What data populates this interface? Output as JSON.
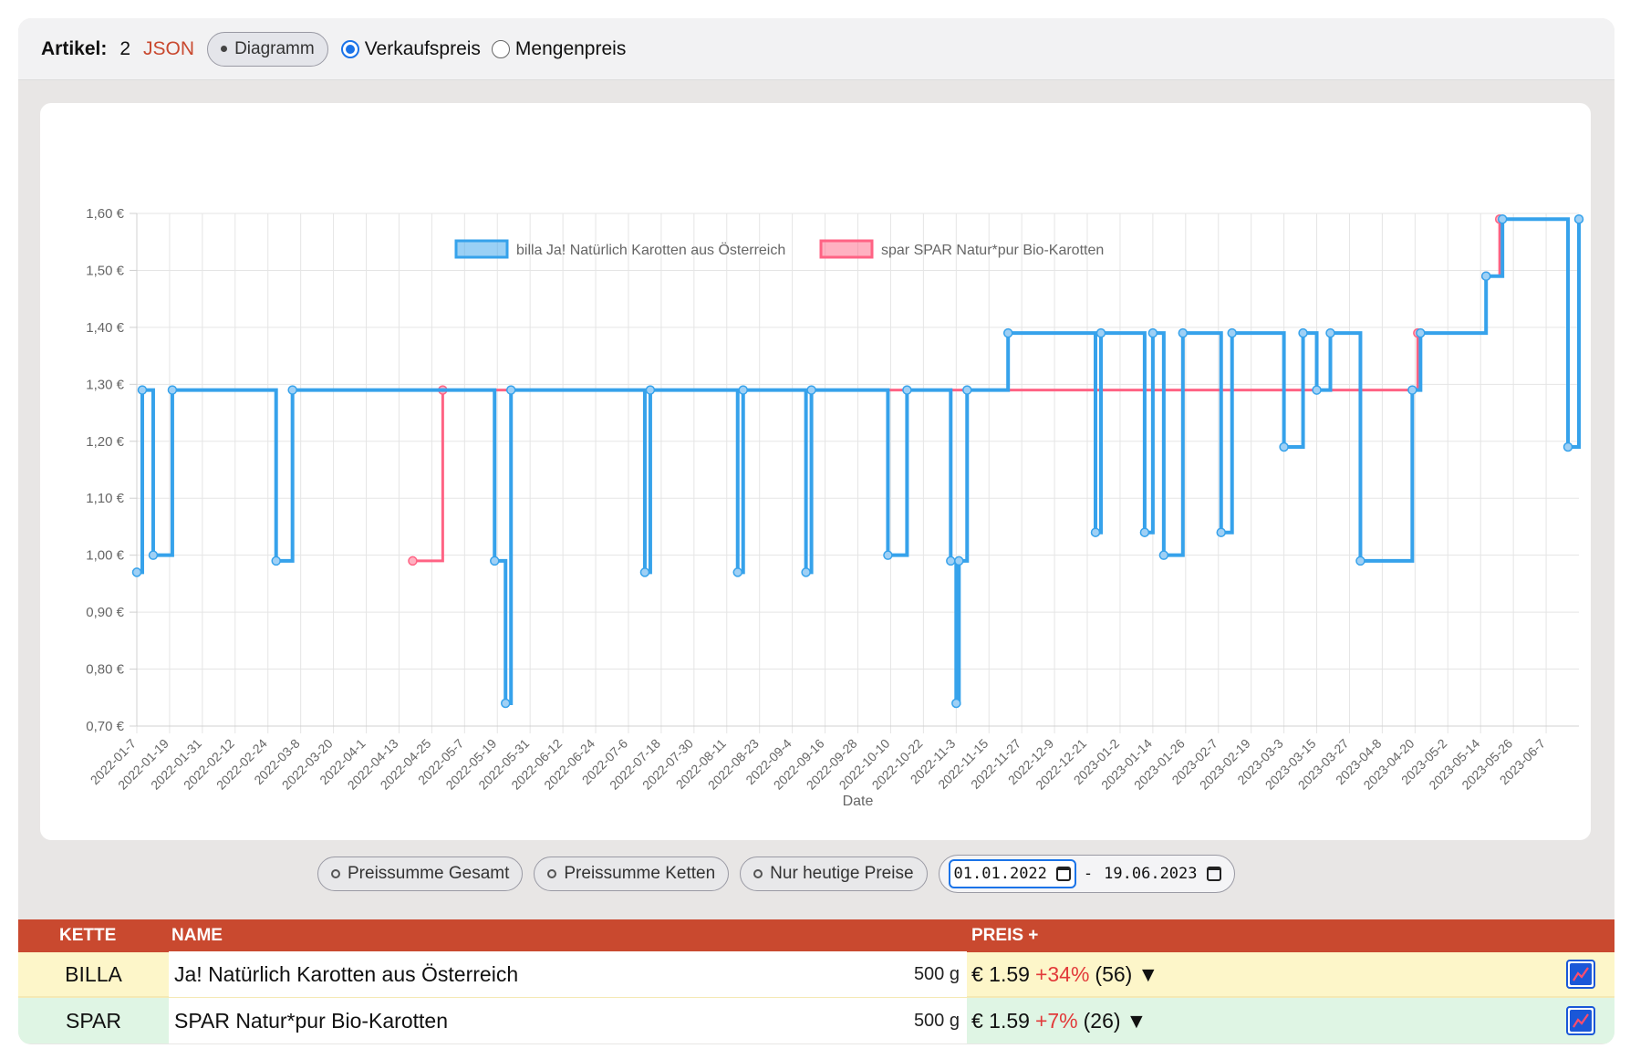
{
  "topbar": {
    "artikel_label": "Artikel:",
    "artikel_count": "2",
    "json_link": "JSON",
    "diagramm_button": "Diagramm",
    "radio_options": [
      {
        "label": "Verkaufspreis",
        "checked": true
      },
      {
        "label": "Mengenpreis",
        "checked": false
      }
    ]
  },
  "controls": {
    "buttons": [
      "Preissumme Gesamt",
      "Preissumme Ketten",
      "Nur heutige Preise"
    ],
    "date_from": "01.01.2022",
    "date_separator": "-",
    "date_to": "19.06.2023"
  },
  "table": {
    "headers": {
      "kette": "KETTE",
      "name": "NAME",
      "preis": "PREIS +"
    },
    "rows": [
      {
        "kette": "BILLA",
        "name": "Ja! Natürlich Karotten aus Österreich",
        "qty": "500 g",
        "price": "€ 1.59",
        "pct": "+34%",
        "count": "(56)",
        "arrow": "▼",
        "icon": "chart-icon"
      },
      {
        "kette": "SPAR",
        "name": "SPAR Natur*pur Bio-Karotten",
        "qty": "500 g",
        "price": "€ 1.59",
        "pct": "+7%",
        "count": "(26)",
        "arrow": "▼",
        "icon": "chart-icon"
      }
    ]
  },
  "chart_data": {
    "type": "line",
    "step": true,
    "xlabel": "Date",
    "ylabel": "",
    "ylim": [
      0.7,
      1.6
    ],
    "y_ticks": [
      "0,70 €",
      "0,80 €",
      "0,90 €",
      "1,00 €",
      "1,10 €",
      "1,20 €",
      "1,30 €",
      "1,40 €",
      "1,50 €",
      "1,60 €"
    ],
    "x_range": [
      "2022-01-07",
      "2023-06-19"
    ],
    "x_ticks": [
      "2022-01-7",
      "2022-01-19",
      "2022-01-31",
      "2022-02-12",
      "2022-02-24",
      "2022-03-8",
      "2022-03-20",
      "2022-04-1",
      "2022-04-13",
      "2022-04-25",
      "2022-05-7",
      "2022-05-19",
      "2022-05-31",
      "2022-06-12",
      "2022-06-24",
      "2022-07-6",
      "2022-07-18",
      "2022-07-30",
      "2022-08-11",
      "2022-08-23",
      "2022-09-4",
      "2022-09-16",
      "2022-09-28",
      "2022-10-10",
      "2022-10-22",
      "2022-11-3",
      "2022-11-15",
      "2022-11-27",
      "2022-12-9",
      "2022-12-21",
      "2023-01-2",
      "2023-01-14",
      "2023-01-26",
      "2023-02-7",
      "2023-02-19",
      "2023-03-3",
      "2023-03-15",
      "2023-03-27",
      "2023-04-8",
      "2023-04-20",
      "2023-05-2",
      "2023-05-14",
      "2023-05-26",
      "2023-06-7"
    ],
    "grid": true,
    "legend_position": "top",
    "series": [
      {
        "name": "billa Ja! Natürlich Karotten aus Österreich",
        "color": "#36a2eb",
        "points": [
          [
            "2022-01-07",
            0.97
          ],
          [
            "2022-01-09",
            1.29
          ],
          [
            "2022-01-13",
            1.0
          ],
          [
            "2022-01-20",
            1.29
          ],
          [
            "2022-02-27",
            0.99
          ],
          [
            "2022-03-05",
            1.29
          ],
          [
            "2022-05-18",
            0.99
          ],
          [
            "2022-05-22",
            0.74
          ],
          [
            "2022-05-24",
            1.29
          ],
          [
            "2022-07-12",
            0.97
          ],
          [
            "2022-07-14",
            1.29
          ],
          [
            "2022-08-15",
            0.97
          ],
          [
            "2022-08-17",
            1.29
          ],
          [
            "2022-09-09",
            0.97
          ],
          [
            "2022-09-11",
            1.29
          ],
          [
            "2022-10-09",
            1.0
          ],
          [
            "2022-10-16",
            1.29
          ],
          [
            "2022-11-01",
            0.99
          ],
          [
            "2022-11-03",
            0.74
          ],
          [
            "2022-11-04",
            0.99
          ],
          [
            "2022-11-07",
            1.29
          ],
          [
            "2022-11-22",
            1.39
          ],
          [
            "2022-12-24",
            1.04
          ],
          [
            "2022-12-26",
            1.39
          ],
          [
            "2023-01-11",
            1.04
          ],
          [
            "2023-01-14",
            1.39
          ],
          [
            "2023-01-18",
            1.0
          ],
          [
            "2023-01-25",
            1.39
          ],
          [
            "2023-02-08",
            1.04
          ],
          [
            "2023-02-12",
            1.39
          ],
          [
            "2023-03-03",
            1.19
          ],
          [
            "2023-03-10",
            1.39
          ],
          [
            "2023-03-15",
            1.29
          ],
          [
            "2023-03-20",
            1.39
          ],
          [
            "2023-03-31",
            0.99
          ],
          [
            "2023-04-19",
            1.29
          ],
          [
            "2023-04-22",
            1.39
          ],
          [
            "2023-05-16",
            1.49
          ],
          [
            "2023-05-22",
            1.59
          ],
          [
            "2023-06-15",
            1.19
          ],
          [
            "2023-06-19",
            1.59
          ]
        ]
      },
      {
        "name": "spar SPAR Natur*pur Bio-Karotten",
        "color": "#ff6384",
        "points": [
          [
            "2022-04-18",
            0.99
          ],
          [
            "2022-04-29",
            1.29
          ],
          [
            "2023-04-21",
            1.39
          ],
          [
            "2023-05-16",
            1.49
          ],
          [
            "2023-05-21",
            1.59
          ]
        ]
      }
    ]
  }
}
